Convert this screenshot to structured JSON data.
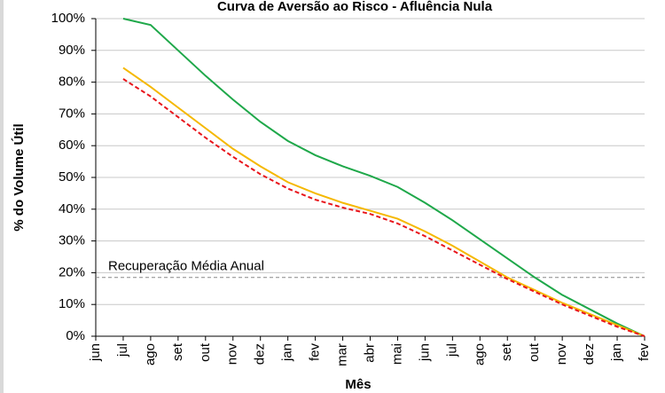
{
  "chart_data": {
    "type": "line",
    "title": "Curva de Aversão ao Risco - Afluência Nula",
    "x_label": "Mês",
    "y_label": "% do Volume Útil",
    "categories": [
      "jun",
      "jul",
      "ago",
      "set",
      "out",
      "nov",
      "dez",
      "jan",
      "fev",
      "mar",
      "abr",
      "mai",
      "jun",
      "jul",
      "ago",
      "set",
      "out",
      "nov",
      "dez",
      "jan",
      "fev"
    ],
    "series": [
      {
        "color": "#1fa84a",
        "dashed": false,
        "values": [
          null,
          100,
          98,
          90,
          82,
          74.5,
          67.5,
          61.5,
          57,
          53.5,
          50.5,
          47,
          42,
          36.5,
          30.5,
          24.5,
          18.5,
          13,
          8.5,
          4,
          0
        ]
      },
      {
        "color": "#f5b800",
        "dashed": false,
        "values": [
          null,
          84.5,
          78.5,
          72,
          65.5,
          59,
          53.5,
          48.5,
          45,
          42,
          39.5,
          37,
          33,
          28.5,
          23.5,
          18.5,
          14.5,
          10.5,
          7,
          3.5,
          0
        ]
      },
      {
        "color": "#e8141b",
        "dashed": true,
        "values": [
          null,
          81,
          75.5,
          69,
          62.5,
          56.5,
          51,
          46.5,
          43,
          40.5,
          38.5,
          35.5,
          31.5,
          27,
          22.5,
          18,
          14,
          10,
          6.5,
          3,
          0
        ]
      }
    ],
    "reference_line": {
      "value": 18.5,
      "label": "Recuperação Média Anual",
      "color": "#888888"
    },
    "ylim": [
      0,
      100
    ],
    "yticks": [
      {
        "value": 0,
        "label": "0%"
      },
      {
        "value": 10,
        "label": "10%"
      },
      {
        "value": 20,
        "label": "20%"
      },
      {
        "value": 30,
        "label": "30%"
      },
      {
        "value": 40,
        "label": "40%"
      },
      {
        "value": 50,
        "label": "50%"
      },
      {
        "value": 60,
        "label": "60%"
      },
      {
        "value": 70,
        "label": "70%"
      },
      {
        "value": 80,
        "label": "80%"
      },
      {
        "value": 90,
        "label": "90%"
      },
      {
        "value": 100,
        "label": "100%"
      }
    ],
    "grid": true
  }
}
